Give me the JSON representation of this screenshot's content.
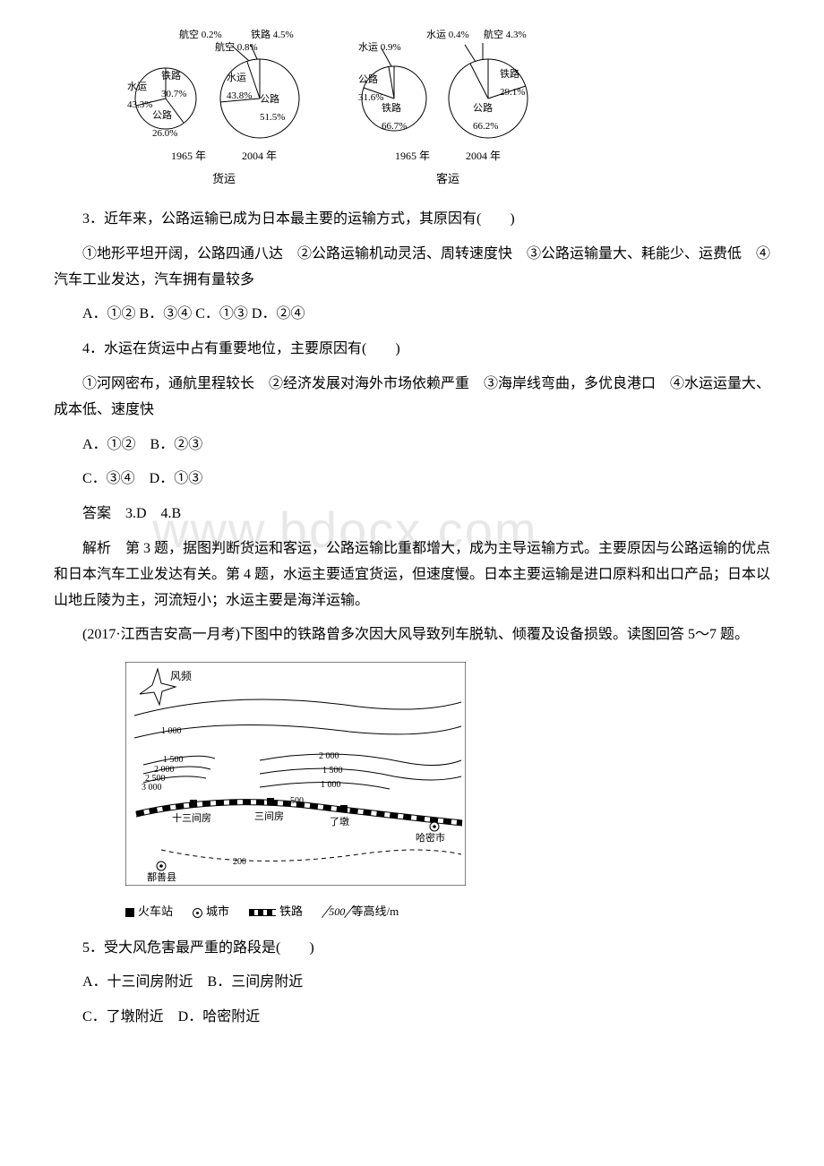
{
  "charts": {
    "freight": {
      "type": "pie-pair",
      "caption": "货运",
      "year1": "1965 年",
      "year2": "2004 年",
      "pie1965": {
        "slices": [
          {
            "label": "水运",
            "value": 43.3,
            "color": "#ffffff",
            "text": "水运\n43.3%"
          },
          {
            "label": "铁路",
            "value": 30.7,
            "color": "#ffffff",
            "text": "铁路\n30.7%"
          },
          {
            "label": "公路",
            "value": 26.0,
            "color": "#ffffff",
            "text": "公路\n26.0%"
          }
        ],
        "callouts": [
          {
            "text": "航空 0.2%"
          }
        ]
      },
      "pie2004": {
        "slices": [
          {
            "label": "水运",
            "value": 43.8,
            "color": "#ffffff",
            "text": "水运\n43.8%"
          },
          {
            "label": "公路",
            "value": 51.5,
            "color": "#ffffff",
            "text": "公路\n51.5%"
          }
        ],
        "callouts": [
          {
            "text": "铁路 4.5%"
          },
          {
            "text": "航空 0.8%"
          }
        ]
      }
    },
    "passenger": {
      "type": "pie-pair",
      "caption": "客运",
      "year1": "1965 年",
      "year2": "2004 年",
      "pie1965": {
        "slices": [
          {
            "label": "铁路",
            "value": 66.7,
            "color": "#ffffff",
            "text": "铁路\n66.7%"
          },
          {
            "label": "公路",
            "value": 31.6,
            "color": "#ffffff",
            "text": "公路\n31.6%"
          }
        ],
        "callouts": [
          {
            "text": "水运 0.9%"
          },
          {
            "text": "水运 0.4%"
          }
        ]
      },
      "pie2004": {
        "slices": [
          {
            "label": "公路",
            "value": 66.2,
            "color": "#ffffff",
            "text": "公路\n66.2%"
          },
          {
            "label": "铁路",
            "value": 29.1,
            "color": "#ffffff",
            "text": "铁路\n29.1%"
          }
        ],
        "callouts": [
          {
            "text": "航空 4.3%"
          }
        ]
      }
    }
  },
  "q3": {
    "stem": "3．近年来，公路运输已成为日本最主要的运输方式，其原因有(　　)",
    "items": "①地形平坦开阔，公路四通八达　②公路运输机动灵活、周转速度快　③公路运输量大、耗能少、运费低　④汽车工业发达，汽车拥有量较多",
    "opts": "A．①② B．③④ C．①③ D．②④"
  },
  "q4": {
    "stem": "4．水运在货运中占有重要地位，主要原因有(　　)",
    "items": "①河网密布，通航里程较长　②经济发展对海外市场依赖严重　③海岸线弯曲，多优良港口　④水运运量大、成本低、速度快",
    "optsA": "A．①②　B．②③",
    "optsC": "C．③④　D．①③"
  },
  "answers34": "答案　3.D　4.B",
  "expl34": "解析　第 3 题，据图判断货运和客运，公路运输比重都增大，成为主导运输方式。主要原因与公路运输的优点和日本汽车工业发达有关。第 4 题，水运主要适宜货运，但速度慢。日本主要运输是进口原料和出口产品；日本以山地丘陵为主，河流短小；水运主要是海洋运输。",
  "intro5": "(2017·江西吉安高一月考)下图中的铁路曾多次因大风导致列车脱轨、倾覆及设备损毁。读图回答 5～7 题。",
  "map": {
    "type": "contour-map",
    "wind_label": "风频",
    "contours": [
      200,
      500,
      1000,
      1500,
      2000,
      2500,
      3000
    ],
    "stations": [
      "十三间房",
      "三间房",
      "了墩"
    ],
    "cities": [
      "鄯善县",
      "哈密市"
    ],
    "legend": {
      "station": "火车站",
      "city": "城市",
      "rail": "铁路",
      "contour": "500",
      "contour_suffix": "等高线/m"
    }
  },
  "q5": {
    "stem": "5．受大风危害最严重的路段是(　　)",
    "optA": "A．十三间房附近　B．三间房附近",
    "optC": "C．了墩附近　D．哈密附近"
  },
  "watermark": "www.bdocx.com"
}
